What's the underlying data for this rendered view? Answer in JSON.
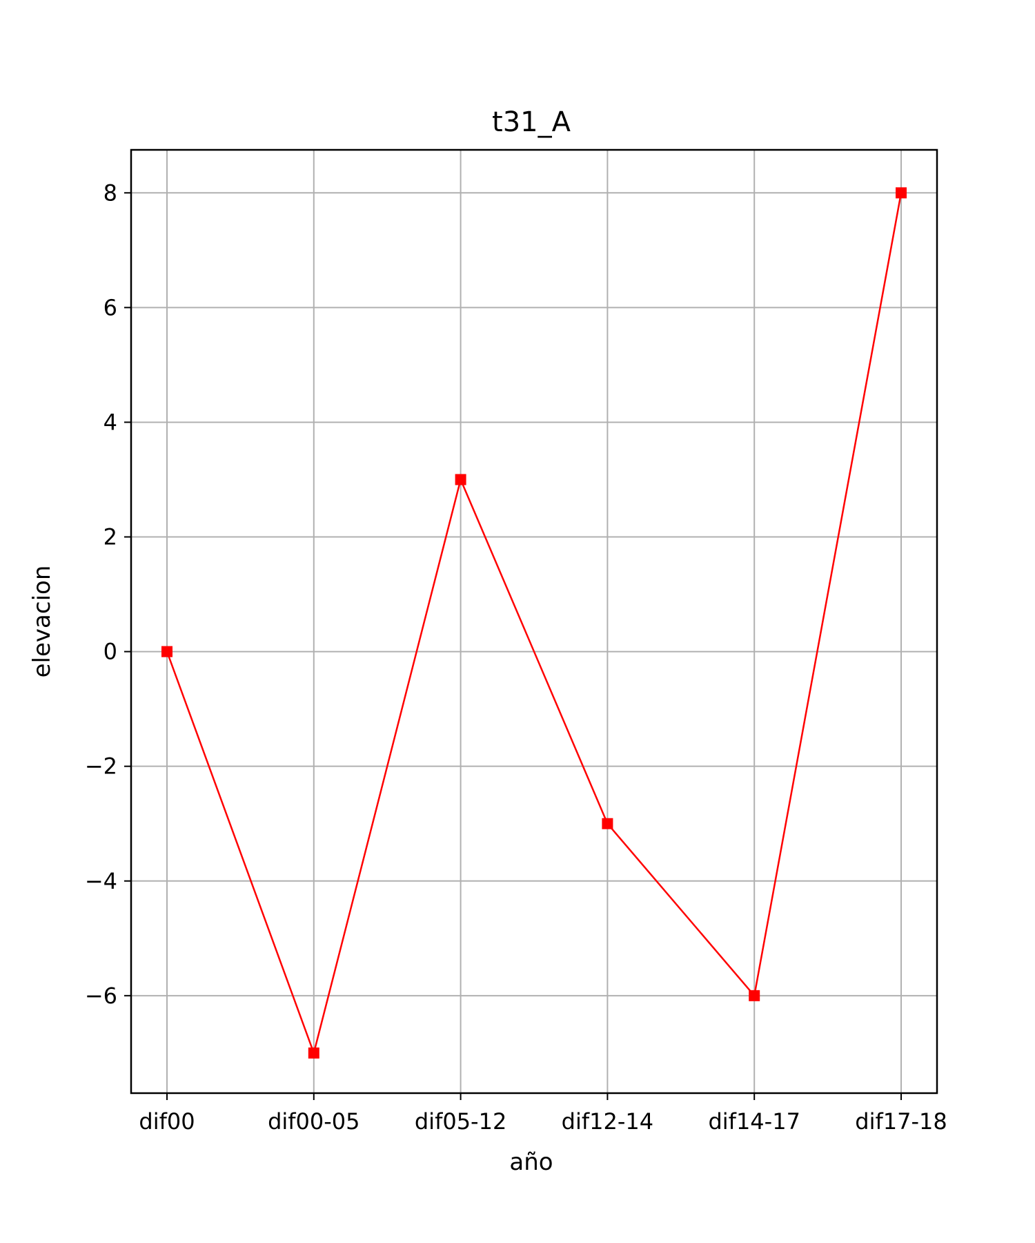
{
  "chart_data": {
    "type": "line",
    "title": "t31_A",
    "xlabel": "año",
    "ylabel": "elevacion",
    "categories": [
      "dif00",
      "dif00-05",
      "dif05-12",
      "dif12-14",
      "dif14-17",
      "dif17-18"
    ],
    "series": [
      {
        "values": [
          0,
          -7,
          3,
          -3,
          -6,
          8
        ],
        "color": "#ff0000",
        "marker": "square"
      }
    ],
    "ylim": [
      -7.7,
      8.75
    ],
    "yticks": [
      -6,
      -4,
      -2,
      0,
      2,
      4,
      6,
      8
    ],
    "ytick_labels": [
      "−6",
      "−4",
      "−2",
      "0",
      "2",
      "4",
      "6",
      "8"
    ],
    "grid": true
  }
}
